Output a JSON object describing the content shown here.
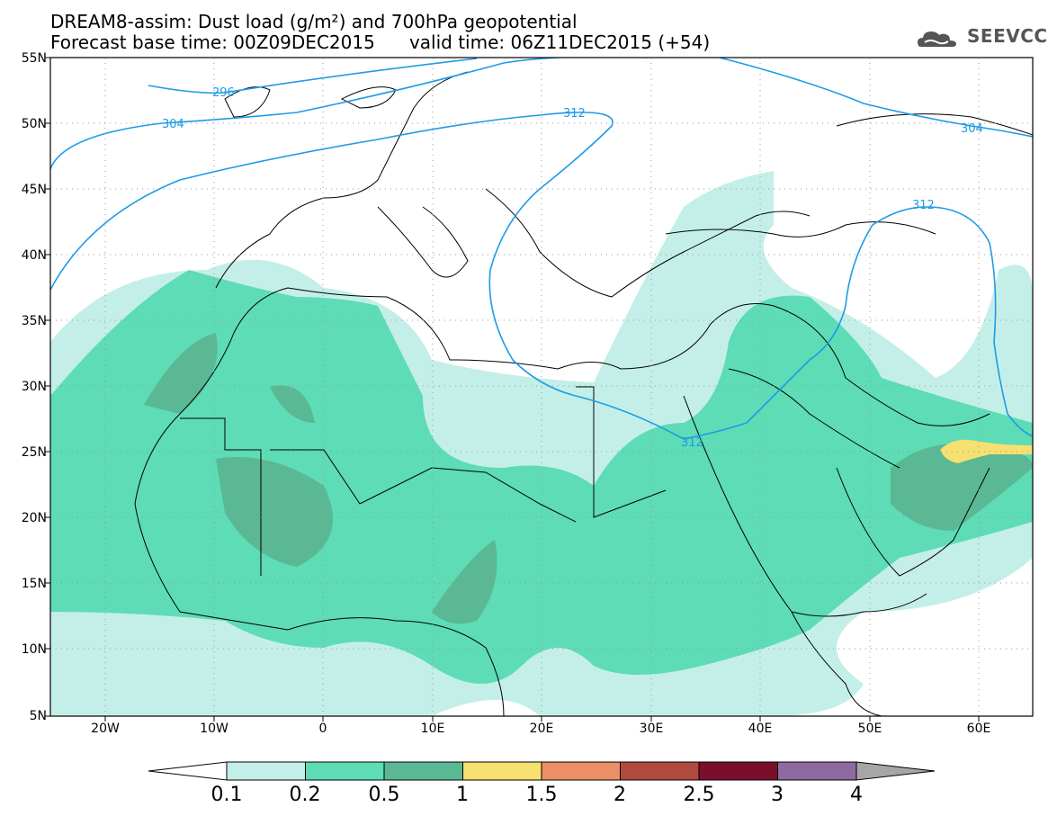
{
  "title": {
    "line1": "DREAM8-assim: Dust load (g/m²) and 700hPa geopotential",
    "line2": "Forecast base time: 00Z09DEC2015      valid time: 06Z11DEC2015 (+54)"
  },
  "logo": {
    "text": "SEEVCCC",
    "icon": "cloud-icon"
  },
  "map": {
    "lat_labels": [
      "55N",
      "50N",
      "45N",
      "40N",
      "35N",
      "30N",
      "25N",
      "20N",
      "15N",
      "10N",
      "5N"
    ],
    "lon_labels": [
      "20W",
      "10W",
      "0",
      "10E",
      "20E",
      "30E",
      "40E",
      "50E",
      "60E"
    ],
    "contour_labels": [
      "296",
      "304",
      "312",
      "312",
      "312",
      "304"
    ],
    "contour_color": "#1e9be6",
    "colors": {
      "c01": "#c4efe9",
      "c02": "#5ddcb5",
      "c05": "#5ab894",
      "c1": "#f5e070"
    }
  },
  "colorbar": {
    "labels": [
      "0.1",
      "0.2",
      "0.5",
      "1",
      "1.5",
      "2",
      "2.5",
      "3",
      "4"
    ],
    "colors": [
      "#c4efe9",
      "#5ddcb5",
      "#5ab894",
      "#f5e070",
      "#ec8e66",
      "#b04a3e",
      "#7a0f2d",
      "#8e6aa0"
    ],
    "under_color": "#ffffff",
    "over_color": "#a6a6a6"
  }
}
